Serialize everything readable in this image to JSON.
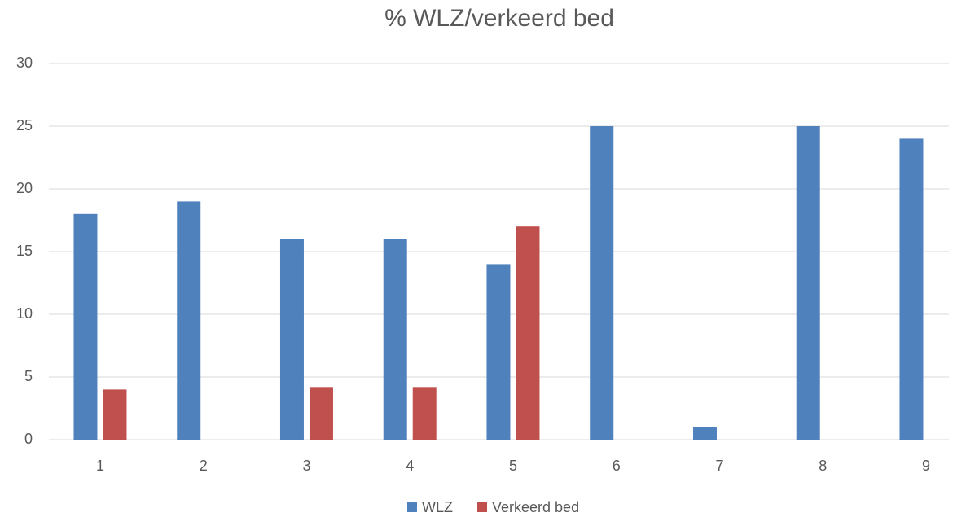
{
  "chart_data": {
    "type": "bar",
    "title": "% WLZ/verkeerd bed",
    "categories": [
      "1",
      "2",
      "3",
      "4",
      "5",
      "6",
      "7",
      "8",
      "9"
    ],
    "series": [
      {
        "name": "WLZ",
        "color": "#4f81bd",
        "values": [
          18,
          19,
          16,
          16,
          14,
          25,
          1,
          25,
          24
        ]
      },
      {
        "name": "Verkeerd bed",
        "color": "#c0504d",
        "values": [
          4,
          0,
          4.2,
          4.2,
          17,
          0,
          0,
          0,
          0
        ]
      }
    ],
    "ylim": [
      0,
      30
    ],
    "yticks": [
      0,
      5,
      10,
      15,
      20,
      25,
      30
    ],
    "grid": true,
    "legend": "bottom"
  }
}
